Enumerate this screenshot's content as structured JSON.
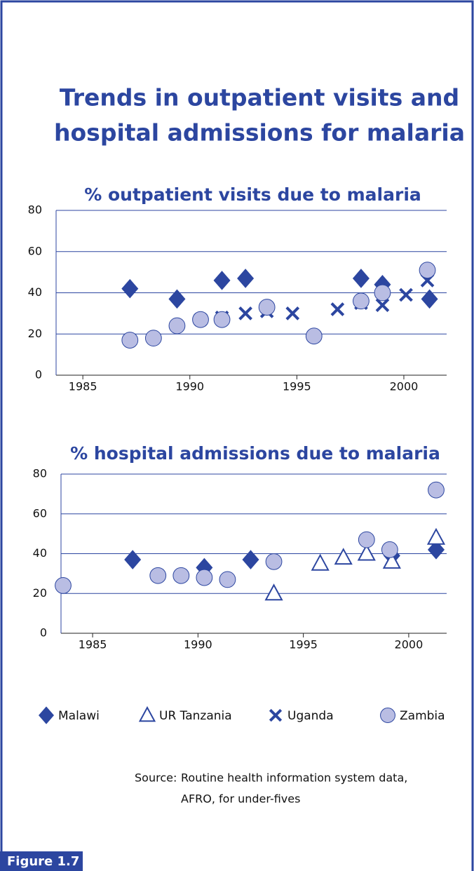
{
  "title": [
    "Trends in outpatient visits and",
    "hospital admissions for malaria"
  ],
  "legend": [
    {
      "name": "Malawi",
      "marker": "diamond",
      "color": "#2c46a0"
    },
    {
      "name": "UR Tanzania",
      "marker": "triangle",
      "color": "#2c46a0"
    },
    {
      "name": "Uganda",
      "marker": "x",
      "color": "#2c46a0"
    },
    {
      "name": "Zambia",
      "marker": "circle",
      "color": "#b9bde3"
    }
  ],
  "chart_data": [
    {
      "type": "scatter",
      "title": "% outpatient visits due to malaria",
      "xlim": [
        1983.75,
        2002
      ],
      "xticks": [
        1985,
        1990,
        1995,
        2000
      ],
      "ylim": [
        0,
        80
      ],
      "yticks": [
        0,
        20,
        40,
        60,
        80
      ],
      "grid": true,
      "series": [
        {
          "name": "Malawi",
          "x": [
            1987.2,
            1989.4,
            1991.5,
            1992.6,
            1998,
            1999,
            2001.2
          ],
          "values": [
            42,
            37,
            46,
            47,
            47,
            44,
            37
          ]
        },
        {
          "name": "Uganda",
          "x": [
            1990.5,
            1991.5,
            1992.6,
            1993.6,
            1994.8,
            1996.9,
            1998,
            1999,
            2000.1,
            2001.1
          ],
          "values": [
            27,
            28,
            30,
            31,
            30,
            32,
            35,
            34,
            39,
            46
          ]
        },
        {
          "name": "Zambia",
          "x": [
            1987.2,
            1988.3,
            1989.4,
            1990.5,
            1991.5,
            1993.6,
            1995.8,
            1998,
            1999,
            2001.1
          ],
          "values": [
            17,
            18,
            24,
            27,
            27,
            33,
            19,
            36,
            40,
            51
          ]
        }
      ]
    },
    {
      "type": "scatter",
      "title": "% hospital admissions due to malaria",
      "xlim": [
        1983.5,
        2001.8
      ],
      "xticks": [
        1985,
        1990,
        1995,
        2000
      ],
      "ylim": [
        0,
        80
      ],
      "yticks": [
        0,
        20,
        40,
        60,
        80
      ],
      "grid": true,
      "series": [
        {
          "name": "Malawi",
          "x": [
            1986.9,
            1990.3,
            1992.5,
            1999.2,
            2001.3
          ],
          "values": [
            37,
            33,
            37,
            39,
            42
          ]
        },
        {
          "name": "UR Tanzania",
          "x": [
            1993.6,
            1995.8,
            1996.9,
            1998,
            1999.2,
            2001.3
          ],
          "values": [
            20,
            35,
            38,
            40,
            36,
            48
          ]
        },
        {
          "name": "Zambia",
          "x": [
            1983.6,
            1988.1,
            1989.2,
            1990.3,
            1991.4,
            1993.6,
            1998,
            1999.1,
            2001.3
          ],
          "values": [
            24,
            29,
            29,
            28,
            27,
            36,
            47,
            42,
            72
          ]
        }
      ]
    }
  ],
  "source": {
    "label": "Source:",
    "lines": [
      "Routine health information system data,",
      "AFRO, for under-fives"
    ]
  },
  "figure_label": "Figure 1.7"
}
